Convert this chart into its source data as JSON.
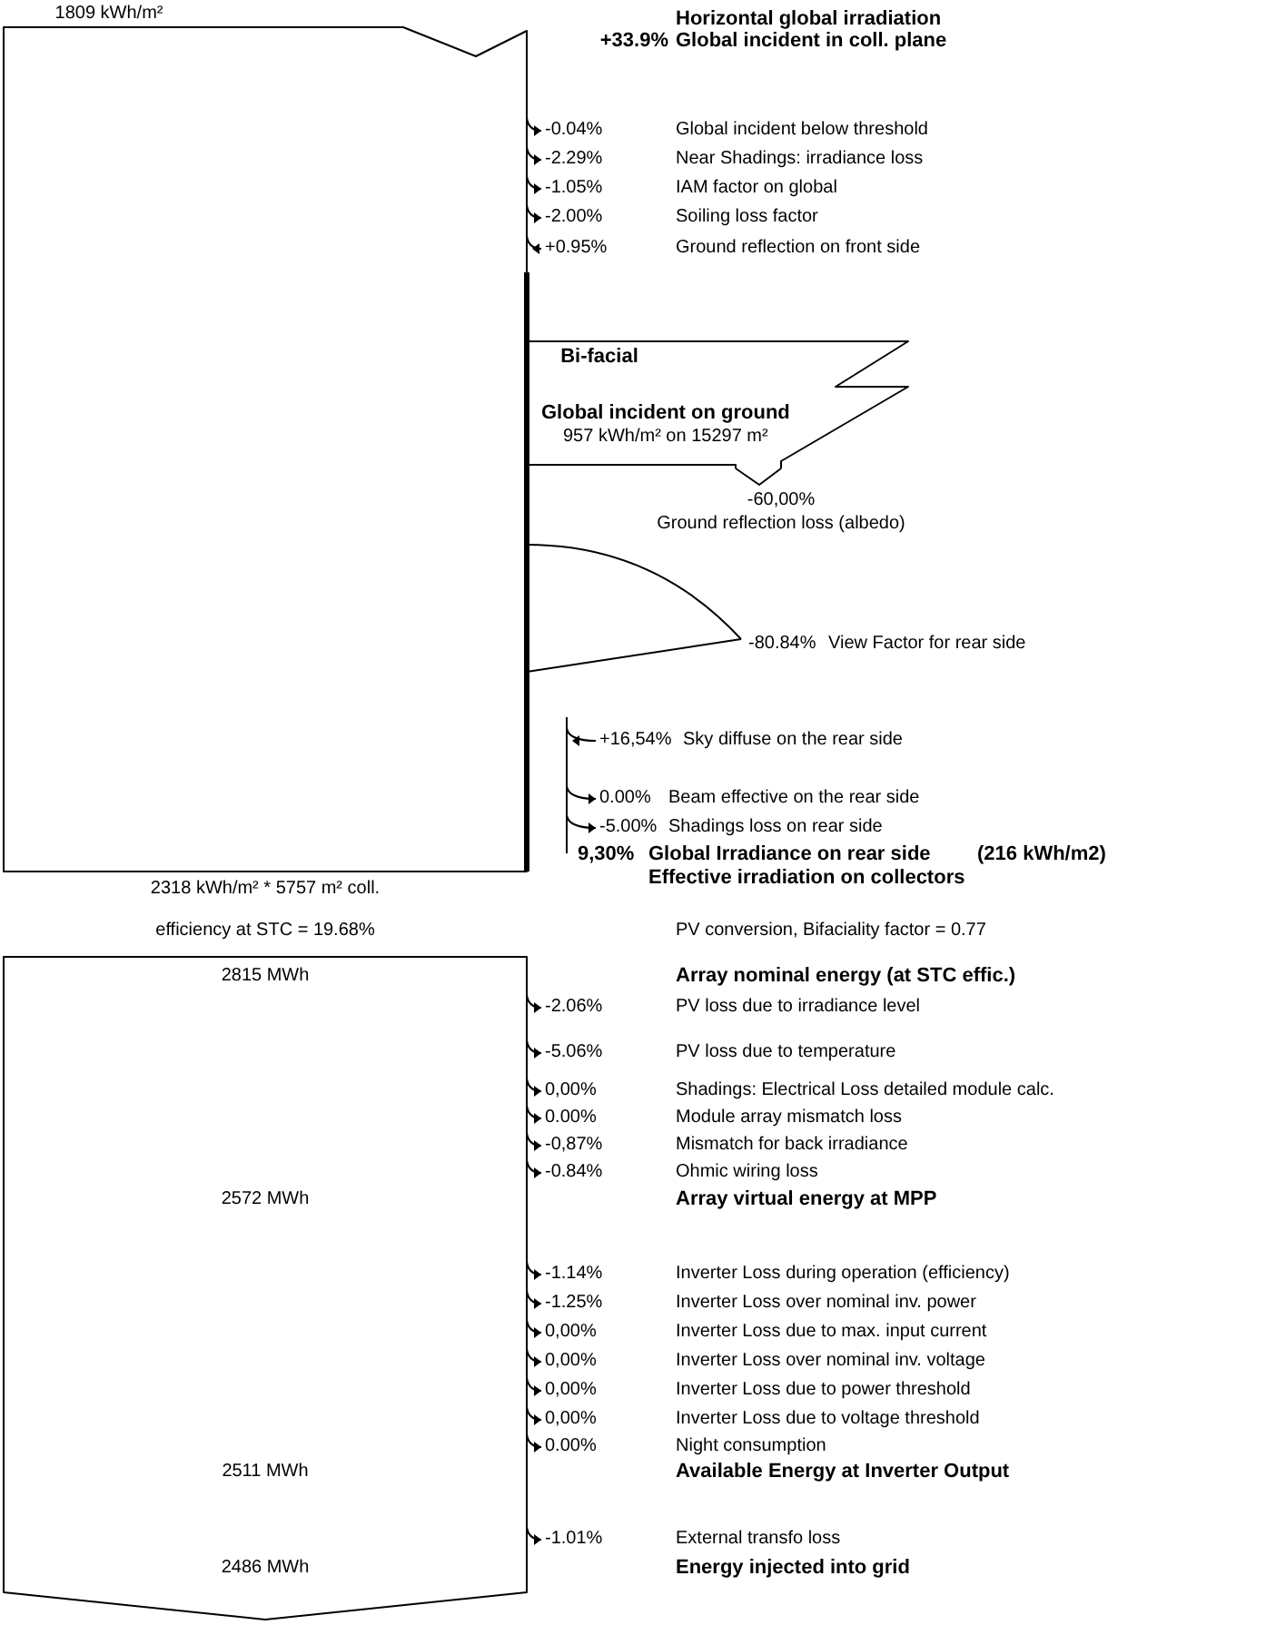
{
  "chart_data": {
    "type": "other",
    "categories": [
      "Horizontal global irradiation",
      "Global incident in coll. plane",
      "Global incident below threshold",
      "Near Shadings: irradiance loss",
      "IAM factor on global",
      "Soiling loss factor",
      "Ground reflection on front side",
      "Global incident on ground",
      "Ground reflection loss (albedo)",
      "View Factor for rear side",
      "Sky diffuse on the rear side",
      "Beam effective on the rear side",
      "Shadings loss on rear side",
      "Global Irradiance on rear side",
      "Effective irradiation on collectors",
      "Array nominal energy (at STC effic.)",
      "PV loss due to irradiance level",
      "PV loss due to temperature",
      "Shadings: Electrical Loss detailed module calc.",
      "Module array mismatch loss",
      "Mismatch for back irradiance",
      "Ohmic wiring loss",
      "Array virtual energy at MPP",
      "Inverter Loss during operation (efficiency)",
      "Inverter Loss over nominal inv. power",
      "Inverter Loss due to max. input current",
      "Inverter Loss over nominal inv. voltage",
      "Inverter Loss due to power threshold",
      "Inverter Loss due to voltage threshold",
      "Night consumption",
      "Available Energy at Inverter Output",
      "External transfo loss",
      "Energy injected into grid"
    ],
    "values": [
      null,
      33.9,
      -0.04,
      -2.29,
      -1.05,
      -2.0,
      0.95,
      null,
      -60.0,
      -80.84,
      16.54,
      0.0,
      -5.0,
      9.3,
      null,
      null,
      -2.06,
      -5.06,
      0.0,
      0.0,
      -0.87,
      -0.84,
      null,
      -1.14,
      -1.25,
      0.0,
      0.0,
      0.0,
      0.0,
      0.0,
      null,
      -1.01,
      null
    ],
    "value_labels": [
      null,
      "+33.9%",
      "-0.04%",
      "-2.29%",
      "-1.05%",
      "-2.00%",
      "+0.95%",
      null,
      "-60,00%",
      "-80.84%",
      "+16,54%",
      "0.00%",
      "-5.00%",
      "9,30%",
      null,
      null,
      "-2.06%",
      "-5.06%",
      "0,00%",
      "0.00%",
      "-0,87%",
      "-0.84%",
      null,
      "-1.14%",
      "-1.25%",
      "0,00%",
      "0,00%",
      "0,00%",
      "0,00%",
      "0.00%",
      null,
      "-1.01%",
      null
    ],
    "annotations": [
      "1809 kWh/m²",
      "Bi-facial",
      "957 kWh/m² on 15297 m²",
      "(216 kWh/m2)",
      "2318 kWh/m² * 5757 m² coll.",
      "efficiency at STC = 19.68%",
      "PV conversion,  Bifaciality factor = 0.77",
      "2815 MWh",
      "2572 MWh",
      "2511 MWh",
      "2486 MWh"
    ]
  }
}
